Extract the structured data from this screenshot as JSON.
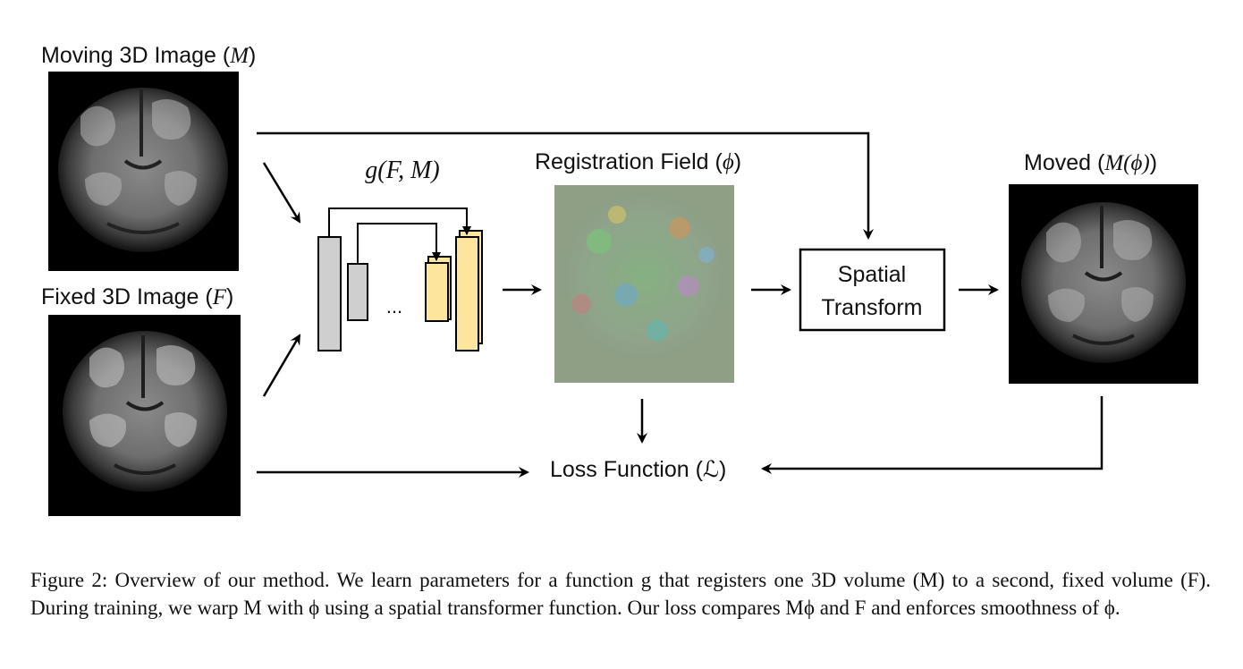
{
  "diagram": {
    "moving_label": "Moving 3D Image",
    "moving_symbol": "M",
    "fixed_label": "Fixed 3D Image",
    "fixed_symbol": "F",
    "network_label": "g(F, M)",
    "ellipsis": "...",
    "field_label": "Registration Field",
    "field_symbol": "ϕ",
    "transform_line1": "Spatial",
    "transform_line2": "Transform",
    "moved_label": "Moved",
    "moved_symbol": "M(ϕ)",
    "loss_label": "Loss Function",
    "loss_symbol": "ℒ",
    "colors": {
      "encoder_block": "#cfcfcf",
      "decoder_block": "#fde59b",
      "field_background": "#8f9f86",
      "arrow": "#000000"
    }
  },
  "caption": "Figure 2: Overview of our method. We learn parameters for a function g that registers one 3D volume (M) to a second, fixed volume (F). During training, we warp M with ϕ using a spatial transformer function. Our loss compares Mϕ and F and enforces smoothness of ϕ."
}
